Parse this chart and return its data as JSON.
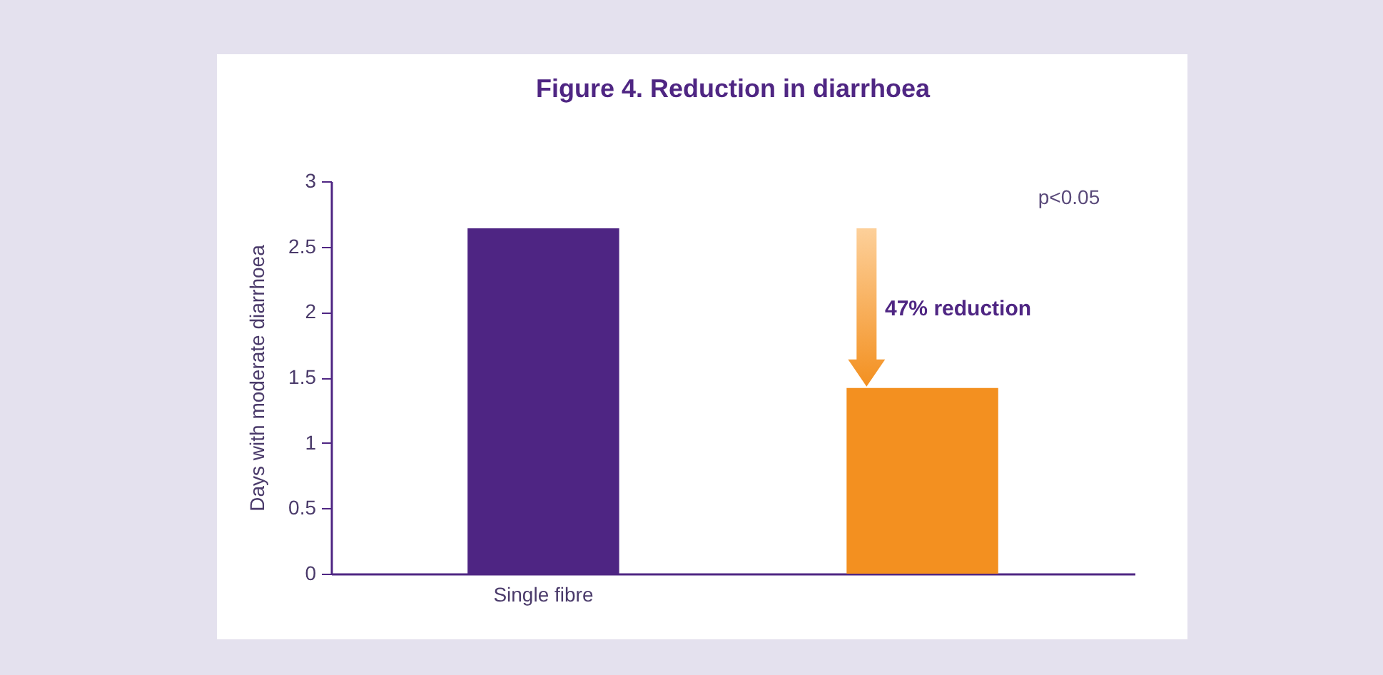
{
  "chart_data": {
    "type": "bar",
    "title": "Figure 4. Reduction in diarrhoea",
    "ylabel": "Days with moderate diarrhoea",
    "categories": [
      "Single fibre",
      null
    ],
    "values": [
      2.64,
      1.42
    ],
    "colors": [
      "#4e2583",
      "#f39020"
    ],
    "ylim": [
      0,
      3
    ],
    "yticks": [
      0,
      0.5,
      1,
      1.5,
      2,
      2.5,
      3
    ],
    "annotations": [
      "47% reduction",
      "p<0.05"
    ],
    "grid": false,
    "legend": false
  }
}
